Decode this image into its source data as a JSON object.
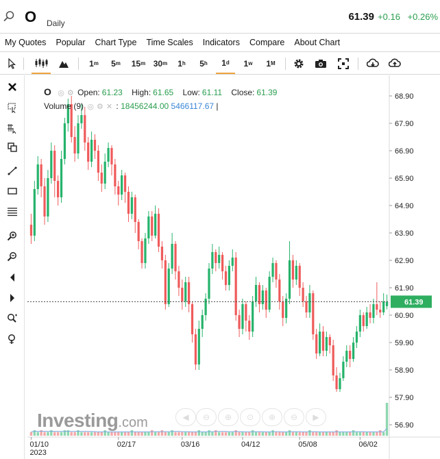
{
  "header": {
    "symbol": "O",
    "interval": "Daily",
    "price": "61.39",
    "change": "+0.16",
    "change_pct": "+0.26%"
  },
  "menu": [
    "My Quotes",
    "Popular",
    "Chart Type",
    "Time Scales",
    "Indicators",
    "Compare",
    "About Chart"
  ],
  "toolbar": {
    "timeframes": [
      {
        "base": "1",
        "sup": "m"
      },
      {
        "base": "5",
        "sup": "m"
      },
      {
        "base": "15",
        "sup": "m"
      },
      {
        "base": "30",
        "sup": "m"
      },
      {
        "base": "1",
        "sup": "h"
      },
      {
        "base": "5",
        "sup": "h"
      },
      {
        "base": "1",
        "sup": "d"
      },
      {
        "base": "1",
        "sup": "w"
      },
      {
        "base": "1",
        "sup": "M"
      }
    ],
    "active_timeframe": "1d"
  },
  "legend": {
    "symbol": "O",
    "open_label": "Open:",
    "open": "61.23",
    "high_label": "High:",
    "high": "61.65",
    "low_label": "Low:",
    "low": "61.11",
    "close_label": "Close:",
    "close": "61.39",
    "volume_label": "Volume (9)",
    "volume_value": "18456244.00",
    "volume_ma": "5466117.67"
  },
  "watermark": {
    "brand": "Investing",
    "suffix": ".com"
  },
  "colors": {
    "up": "#26b36b",
    "down": "#ef5b5b",
    "last_price_bg": "#2fae60",
    "accent": "#f0a43c"
  },
  "chart_data": {
    "type": "candlestick",
    "title": "O",
    "interval": "Daily",
    "ylim": [
      56.5,
      69.5
    ],
    "y_ticks": [
      "68.90",
      "67.90",
      "66.90",
      "65.90",
      "64.90",
      "63.90",
      "62.90",
      "61.90",
      "60.90",
      "59.90",
      "58.90",
      "57.90",
      "56.90"
    ],
    "x_ticks": [
      {
        "label": "01/10",
        "sublabel": "2023",
        "index": 0
      },
      {
        "label": "02/17",
        "sublabel": "",
        "index": 26
      },
      {
        "label": "03/16",
        "sublabel": "",
        "index": 45
      },
      {
        "label": "04/12",
        "sublabel": "",
        "index": 63
      },
      {
        "label": "05/08",
        "sublabel": "",
        "index": 80
      },
      {
        "label": "06/02",
        "sublabel": "",
        "index": 98
      }
    ],
    "last_price": "61.39",
    "candles": [
      [
        64.2,
        63.8,
        64.6,
        63.5
      ],
      [
        63.8,
        65.5,
        65.8,
        63.6
      ],
      [
        65.5,
        66.4,
        66.7,
        65.3
      ],
      [
        66.4,
        65.6,
        66.6,
        65.2
      ],
      [
        65.6,
        64.5,
        65.9,
        64.2
      ],
      [
        64.5,
        65.9,
        66.2,
        64.3
      ],
      [
        65.9,
        66.9,
        67.2,
        65.7
      ],
      [
        66.9,
        65.8,
        67.1,
        65.2
      ],
      [
        65.8,
        65.2,
        66.0,
        64.9
      ],
      [
        65.2,
        66.6,
        66.9,
        65.0
      ],
      [
        66.6,
        67.9,
        68.1,
        66.4
      ],
      [
        67.9,
        68.6,
        68.8,
        67.6
      ],
      [
        68.6,
        67.4,
        68.9,
        67.2
      ],
      [
        67.4,
        66.8,
        67.8,
        66.5
      ],
      [
        66.8,
        67.9,
        68.2,
        66.6
      ],
      [
        67.9,
        68.2,
        68.6,
        67.7
      ],
      [
        68.2,
        67.2,
        68.5,
        66.9
      ],
      [
        67.2,
        66.5,
        67.4,
        66.2
      ],
      [
        66.5,
        67.3,
        67.6,
        66.3
      ],
      [
        67.3,
        66.9,
        67.5,
        66.6
      ],
      [
        66.9,
        66.1,
        67.1,
        65.8
      ],
      [
        66.1,
        65.7,
        66.4,
        65.4
      ],
      [
        65.7,
        66.5,
        66.8,
        65.5
      ],
      [
        66.5,
        67.0,
        67.2,
        66.3
      ],
      [
        67.0,
        66.4,
        67.1,
        66.0
      ],
      [
        66.4,
        65.6,
        66.6,
        65.3
      ],
      [
        65.6,
        65.3,
        65.8,
        64.9
      ],
      [
        65.3,
        66.0,
        66.2,
        65.1
      ],
      [
        66.0,
        65.4,
        66.1,
        65.0
      ],
      [
        65.4,
        64.6,
        65.6,
        64.3
      ],
      [
        64.6,
        65.2,
        65.4,
        64.4
      ],
      [
        65.2,
        64.3,
        65.3,
        63.9
      ],
      [
        64.3,
        63.6,
        64.4,
        63.3
      ],
      [
        63.6,
        62.8,
        63.7,
        62.6
      ],
      [
        62.8,
        63.7,
        63.9,
        62.6
      ],
      [
        63.7,
        64.5,
        64.7,
        63.5
      ],
      [
        64.5,
        63.8,
        64.7,
        63.6
      ],
      [
        63.8,
        64.6,
        64.9,
        63.7
      ],
      [
        64.6,
        63.4,
        64.8,
        63.2
      ],
      [
        63.4,
        62.9,
        63.6,
        62.6
      ],
      [
        62.9,
        61.3,
        63.1,
        61.1
      ],
      [
        61.3,
        62.6,
        62.8,
        61.2
      ],
      [
        62.6,
        63.5,
        63.9,
        62.4
      ],
      [
        63.5,
        62.5,
        63.6,
        62.2
      ],
      [
        62.5,
        61.9,
        62.7,
        61.6
      ],
      [
        61.9,
        61.4,
        62.2,
        61.1
      ],
      [
        61.4,
        62.1,
        62.3,
        61.2
      ],
      [
        62.1,
        61.3,
        62.3,
        61.0
      ],
      [
        61.3,
        60.2,
        61.4,
        59.9
      ],
      [
        60.2,
        59.1,
        60.4,
        58.9
      ],
      [
        59.1,
        60.4,
        60.7,
        58.9
      ],
      [
        60.4,
        60.9,
        61.1,
        60.1
      ],
      [
        60.9,
        61.5,
        61.7,
        60.7
      ],
      [
        61.5,
        62.6,
        62.8,
        61.3
      ],
      [
        62.6,
        63.2,
        63.5,
        62.4
      ],
      [
        63.2,
        62.8,
        63.3,
        62.5
      ],
      [
        62.8,
        63.1,
        63.4,
        62.6
      ],
      [
        63.1,
        62.5,
        63.2,
        62.2
      ],
      [
        62.5,
        62.0,
        62.7,
        61.8
      ],
      [
        62.0,
        62.7,
        62.9,
        61.8
      ],
      [
        62.7,
        63.0,
        63.3,
        62.5
      ],
      [
        63.0,
        60.9,
        63.2,
        60.7
      ],
      [
        60.9,
        60.4,
        61.1,
        60.1
      ],
      [
        60.4,
        61.3,
        61.5,
        60.2
      ],
      [
        61.3,
        60.7,
        61.4,
        60.3
      ],
      [
        60.7,
        60.3,
        60.9,
        60.0
      ],
      [
        60.3,
        61.4,
        61.6,
        60.1
      ],
      [
        61.4,
        62.0,
        62.3,
        61.2
      ],
      [
        62.0,
        61.3,
        62.1,
        61.0
      ],
      [
        61.3,
        61.8,
        62.0,
        61.1
      ],
      [
        61.8,
        61.1,
        61.9,
        60.8
      ],
      [
        61.1,
        62.3,
        62.5,
        61.0
      ],
      [
        62.3,
        62.8,
        63.0,
        62.1
      ],
      [
        62.8,
        62.2,
        62.9,
        61.9
      ],
      [
        62.2,
        61.4,
        62.4,
        61.1
      ],
      [
        61.4,
        60.8,
        61.6,
        60.5
      ],
      [
        60.8,
        61.5,
        61.7,
        60.6
      ],
      [
        61.5,
        62.9,
        63.6,
        61.3
      ],
      [
        62.9,
        62.2,
        63.1,
        61.9
      ],
      [
        62.2,
        62.7,
        62.9,
        62.0
      ],
      [
        62.7,
        61.9,
        62.8,
        61.6
      ],
      [
        61.9,
        61.4,
        62.1,
        61.2
      ],
      [
        61.4,
        61.0,
        61.6,
        60.8
      ],
      [
        61.0,
        61.7,
        62.0,
        60.8
      ],
      [
        61.7,
        60.2,
        61.8,
        60.0
      ],
      [
        60.2,
        59.5,
        60.4,
        59.3
      ],
      [
        59.5,
        60.3,
        60.6,
        59.4
      ],
      [
        60.3,
        59.6,
        60.5,
        59.4
      ],
      [
        59.6,
        60.1,
        60.3,
        59.4
      ],
      [
        60.1,
        59.8,
        60.2,
        59.5
      ],
      [
        59.8,
        58.7,
        60.0,
        58.5
      ],
      [
        58.7,
        58.2,
        59.0,
        58.1
      ],
      [
        58.2,
        58.6,
        58.8,
        58.1
      ],
      [
        58.6,
        59.2,
        59.4,
        58.5
      ],
      [
        59.2,
        59.6,
        59.8,
        59.0
      ],
      [
        59.6,
        59.3,
        59.8,
        59.0
      ],
      [
        59.3,
        59.9,
        60.1,
        59.2
      ],
      [
        59.9,
        60.3,
        60.5,
        59.7
      ],
      [
        60.3,
        60.9,
        61.1,
        60.1
      ],
      [
        60.9,
        60.5,
        61.0,
        60.3
      ],
      [
        60.5,
        61.0,
        61.2,
        60.4
      ],
      [
        61.0,
        60.8,
        61.3,
        60.6
      ],
      [
        60.8,
        61.3,
        61.5,
        60.6
      ],
      [
        61.3,
        61.1,
        62.1,
        60.9
      ],
      [
        61.1,
        61.0,
        61.4,
        60.8
      ],
      [
        61.0,
        61.4,
        61.7,
        60.9
      ],
      [
        61.23,
        61.39,
        61.65,
        61.11
      ]
    ],
    "volume": [
      2,
      3,
      2,
      3,
      2,
      2,
      3,
      2,
      2,
      2,
      3,
      3,
      2,
      2,
      3,
      2,
      2,
      2,
      2,
      2,
      2,
      2,
      3,
      2,
      2,
      2,
      2,
      2,
      2,
      2,
      3,
      2,
      2,
      2,
      2,
      2,
      3,
      2,
      2,
      3,
      2,
      2,
      3,
      2,
      2,
      2,
      2,
      2,
      2,
      2,
      3,
      2,
      2,
      3,
      2,
      3,
      2,
      2,
      2,
      2,
      2,
      3,
      2,
      2,
      2,
      2,
      3,
      2,
      2,
      2,
      2,
      2,
      3,
      2,
      2,
      2,
      2,
      3,
      2,
      2,
      2,
      2,
      2,
      3,
      2,
      2,
      2,
      2,
      2,
      2,
      2,
      3,
      2,
      2,
      2,
      2,
      3,
      2,
      2,
      2,
      2,
      2,
      2,
      2,
      3,
      2,
      18
    ]
  }
}
